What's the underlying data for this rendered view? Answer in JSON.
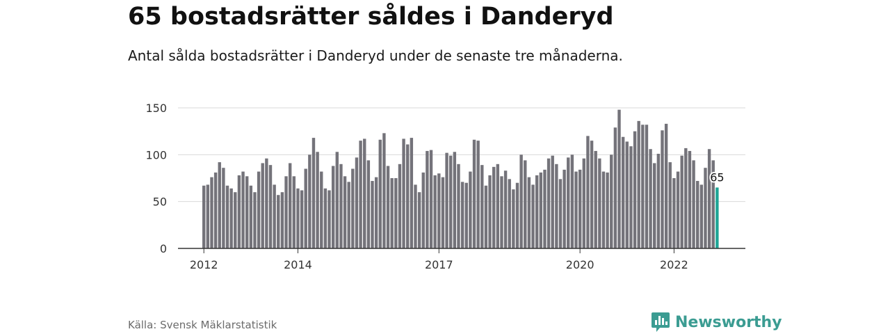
{
  "title": "65 bostadsrätter såldes i Danderyd",
  "subtitle": "Antal sålda bostadsrätter i Danderyd under de senaste tre månaderna.",
  "source": "Källa: Svensk Mäklarstatistik",
  "brand": {
    "name": "Newsworthy",
    "icon": "newsworthy-logo-icon",
    "color": "#3b9c92"
  },
  "colors": {
    "bar": "#74737a",
    "highlight": "#1ea596",
    "grid": "#d9d9d9",
    "axis": "#333333"
  },
  "chart_data": {
    "type": "bar",
    "frequency": "monthly",
    "start": "2012-01",
    "end": "2022-12",
    "ylim": [
      0,
      150
    ],
    "yticks": [
      0,
      50,
      100,
      150
    ],
    "xtick_labels": [
      "2012",
      "2014",
      "2017",
      "2020",
      "2022"
    ],
    "grid": true,
    "values": [
      67,
      68,
      76,
      81,
      92,
      86,
      67,
      64,
      60,
      78,
      82,
      77,
      67,
      60,
      82,
      91,
      96,
      89,
      68,
      57,
      60,
      77,
      91,
      77,
      64,
      62,
      85,
      100,
      118,
      103,
      82,
      64,
      62,
      88,
      103,
      90,
      77,
      71,
      85,
      97,
      115,
      117,
      94,
      72,
      76,
      116,
      123,
      88,
      75,
      75,
      90,
      117,
      111,
      118,
      68,
      60,
      81,
      104,
      105,
      78,
      80,
      76,
      102,
      99,
      103,
      90,
      71,
      70,
      82,
      116,
      115,
      89,
      67,
      78,
      87,
      90,
      77,
      83,
      74,
      63,
      70,
      100,
      94,
      76,
      68,
      78,
      81,
      84,
      96,
      99,
      90,
      74,
      84,
      97,
      100,
      82,
      84,
      96,
      120,
      115,
      104,
      96,
      82,
      81,
      100,
      129,
      148,
      119,
      114,
      109,
      125,
      136,
      132,
      132,
      106,
      91,
      101,
      126,
      133,
      92,
      75,
      82,
      99,
      107,
      104,
      94,
      72,
      68,
      86,
      106,
      94,
      65
    ],
    "highlight_index": 131,
    "highlight_label": "65"
  }
}
